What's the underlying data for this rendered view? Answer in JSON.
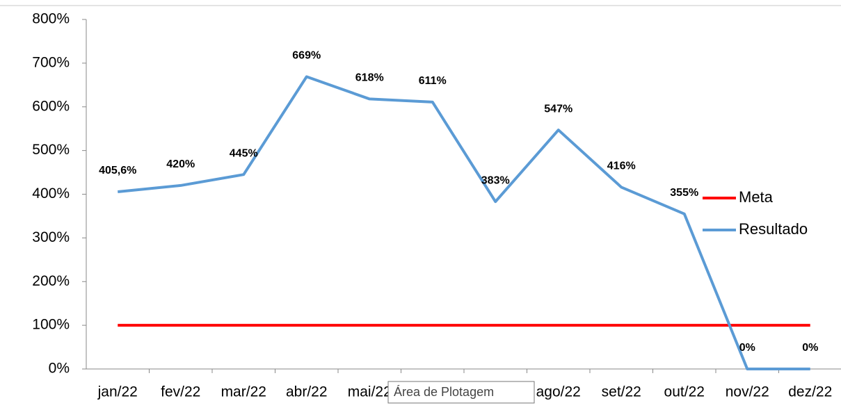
{
  "chart_data": {
    "type": "line",
    "categories": [
      "jan/22",
      "fev/22",
      "mar/22",
      "abr/22",
      "mai/22",
      null,
      null,
      "ago/22",
      "set/22",
      "out/22",
      "nov/22",
      "dez/22"
    ],
    "series": [
      {
        "name": "Meta",
        "color": "#ff0000",
        "values": [
          100,
          100,
          100,
          100,
          100,
          100,
          100,
          100,
          100,
          100,
          100,
          100
        ]
      },
      {
        "name": "Resultado",
        "color": "#5b9bd5",
        "values": [
          405.6,
          420,
          445,
          669,
          618,
          611,
          383,
          547,
          416,
          355,
          0,
          0
        ],
        "value_labels": [
          "405,6%",
          "420%",
          "445%",
          "669%",
          "618%",
          "611%",
          "383%",
          "547%",
          "416%",
          "355%",
          "0%",
          "0%"
        ]
      }
    ],
    "ylim": [
      0,
      800
    ],
    "yticks": [
      {
        "value": 0,
        "label": "0%"
      },
      {
        "value": 100,
        "label": "100%"
      },
      {
        "value": 200,
        "label": "200%"
      },
      {
        "value": 300,
        "label": "300%"
      },
      {
        "value": 400,
        "label": "400%"
      },
      {
        "value": 500,
        "label": "500%"
      },
      {
        "value": 600,
        "label": "600%"
      },
      {
        "value": 700,
        "label": "700%"
      },
      {
        "value": 800,
        "label": "800%"
      }
    ],
    "grid": false,
    "legend": "right",
    "tooltip": "Área de Plotagem"
  }
}
